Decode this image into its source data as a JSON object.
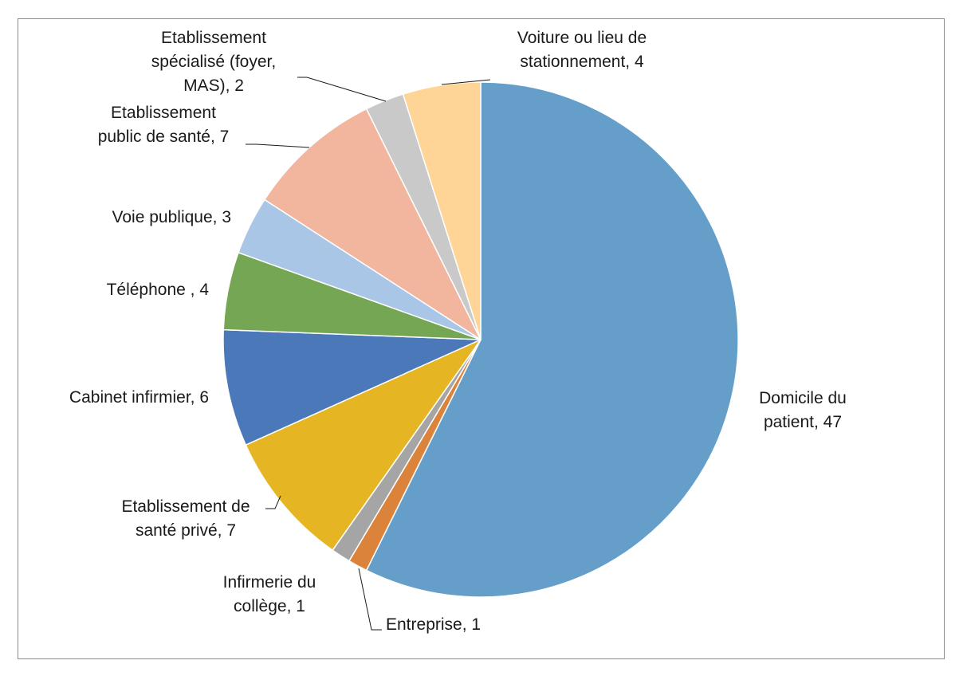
{
  "chart_data": {
    "type": "pie",
    "title": "",
    "slices": [
      {
        "label": "Domicile du patient, 47",
        "lines": [
          "Domicile du",
          "patient, 47"
        ],
        "value": 47,
        "color": "#659ec9"
      },
      {
        "label": "Entreprise, 1",
        "lines": [
          "Entreprise, 1"
        ],
        "value": 1,
        "color": "#dc833b"
      },
      {
        "label": "Infirmerie du collège, 1",
        "lines": [
          "Infirmerie du",
          "collège, 1"
        ],
        "value": 1,
        "color": "#a5a5a5"
      },
      {
        "label": "Etablissement de santé privé, 7",
        "lines": [
          "Etablissement de",
          "santé privé, 7"
        ],
        "value": 7,
        "color": "#e6b524"
      },
      {
        "label": "Cabinet infirmier, 6",
        "lines": [
          "Cabinet infirmier, 6"
        ],
        "value": 6,
        "color": "#4a78b8"
      },
      {
        "label": "Téléphone , 4",
        "lines": [
          "Téléphone , 4"
        ],
        "value": 4,
        "color": "#75a653"
      },
      {
        "label": "Voie publique, 3",
        "lines": [
          "Voie publique, 3"
        ],
        "value": 3,
        "color": "#a9c6e6"
      },
      {
        "label": "Etablissement public de santé, 7",
        "lines": [
          "Etablissement",
          "public de santé, 7"
        ],
        "value": 7,
        "color": "#f2b69e"
      },
      {
        "label": "Etablissement spécialisé (foyer, MAS), 2",
        "lines": [
          "Etablissement",
          "spécialisé (foyer,",
          "MAS), 2"
        ],
        "value": 2,
        "color": "#c9c9c9"
      },
      {
        "label": "Voiture ou lieu de stationnement, 4",
        "lines": [
          "Voiture ou lieu de",
          "stationnement, 4"
        ],
        "value": 4,
        "color": "#fed597"
      }
    ]
  }
}
